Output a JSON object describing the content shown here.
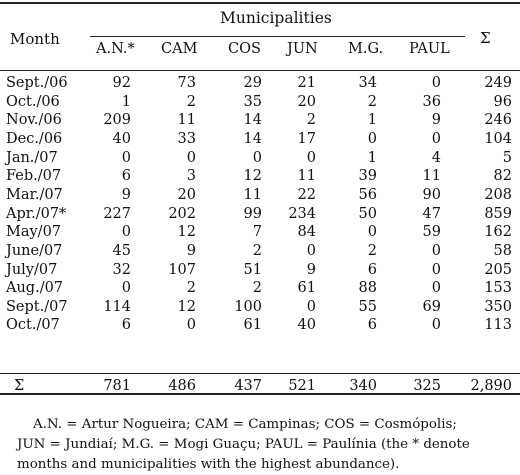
{
  "table": {
    "month_header": "Month",
    "group_header": "Municipalities",
    "total_header": "Σ",
    "columns": [
      "A.N.*",
      "CAM",
      "COS",
      "JUN",
      "M.G.",
      "PAUL"
    ],
    "rows": [
      {
        "month": "Sept./06",
        "values": [
          "92",
          "73",
          "29",
          "21",
          "34",
          "0"
        ],
        "total": "249"
      },
      {
        "month": "Oct./06",
        "values": [
          "1",
          "2",
          "35",
          "20",
          "2",
          "36"
        ],
        "total": "96"
      },
      {
        "month": "Nov./06",
        "values": [
          "209",
          "11",
          "14",
          "2",
          "1",
          "9"
        ],
        "total": "246"
      },
      {
        "month": "Dec./06",
        "values": [
          "40",
          "33",
          "14",
          "17",
          "0",
          "0"
        ],
        "total": "104"
      },
      {
        "month": "Jan./07",
        "values": [
          "0",
          "0",
          "0",
          "0",
          "1",
          "4"
        ],
        "total": "5"
      },
      {
        "month": "Feb./07",
        "values": [
          "6",
          "3",
          "12",
          "11",
          "39",
          "11"
        ],
        "total": "82"
      },
      {
        "month": "Mar./07",
        "values": [
          "9",
          "20",
          "11",
          "22",
          "56",
          "90"
        ],
        "total": "208"
      },
      {
        "month": "Apr./07*",
        "values": [
          "227",
          "202",
          "99",
          "234",
          "50",
          "47"
        ],
        "total": "859"
      },
      {
        "month": "May/07",
        "values": [
          "0",
          "12",
          "7",
          "84",
          "0",
          "59"
        ],
        "total": "162"
      },
      {
        "month": "June/07",
        "values": [
          "45",
          "9",
          "2",
          "0",
          "2",
          "0"
        ],
        "total": "58"
      },
      {
        "month": "July/07",
        "values": [
          "32",
          "107",
          "51",
          "9",
          "6",
          "0"
        ],
        "total": "205"
      },
      {
        "month": "Aug./07",
        "values": [
          "0",
          "2",
          "2",
          "61",
          "88",
          "0"
        ],
        "total": "153"
      },
      {
        "month": "Sept./07",
        "values": [
          "114",
          "12",
          "100",
          "0",
          "55",
          "69"
        ],
        "total": "350"
      },
      {
        "month": "Oct./07",
        "values": [
          "6",
          "0",
          "61",
          "40",
          "6",
          "0"
        ],
        "total": "113"
      },
      {
        "month": "Σ",
        "values": [
          "781",
          "486",
          "437",
          "521",
          "340",
          "325"
        ],
        "total": "2,890"
      }
    ]
  },
  "footnote": {
    "line1": "A.N. = Artur Nogueira; CAM = Campinas; COS = Cosmópolis;",
    "line2": "JUN = Jundiaí; M.G. = Mogi Guaçu; PAUL = Paulínia (the * denote",
    "line3": "months and municipalities with the highest abundance)."
  }
}
